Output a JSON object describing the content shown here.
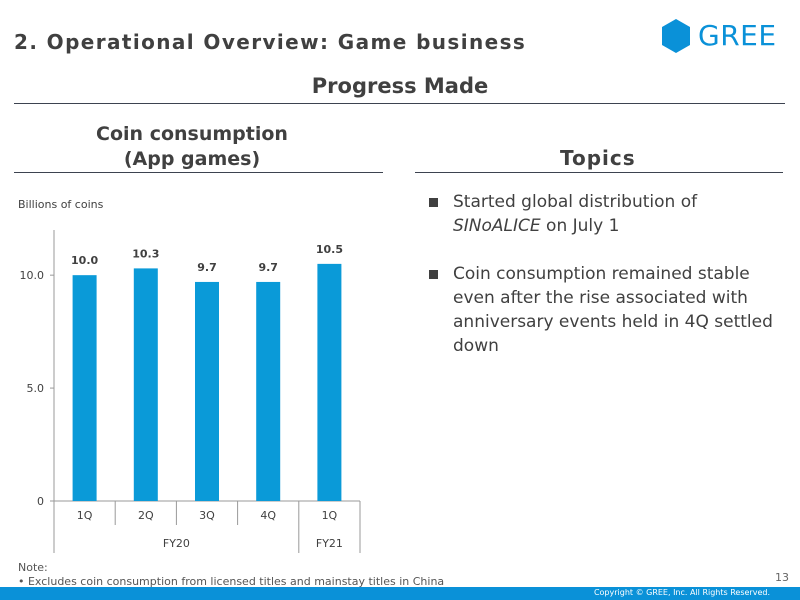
{
  "header": {
    "title": "2. Operational Overview: Game business",
    "logo_text": "GREE",
    "subtitle": "Progress Made"
  },
  "left_panel": {
    "heading_line1": "Coin consumption",
    "heading_line2": "(App games)",
    "unit_label": "Billions of coins"
  },
  "right_panel": {
    "heading": "Topics",
    "bullets": [
      {
        "before": "Started global distribution of ",
        "emphasis": "SINoALICE",
        "after": " on July 1"
      },
      {
        "before": "Coin consumption remained stable even after the rise associated with anniversary events held in 4Q settled down",
        "emphasis": "",
        "after": ""
      }
    ]
  },
  "chart_data": {
    "type": "bar",
    "title": "Coin consumption (App games)",
    "ylabel": "Billions of coins",
    "xlabel": "",
    "categories": [
      "1Q",
      "2Q",
      "3Q",
      "4Q",
      "1Q"
    ],
    "groups": [
      {
        "label": "FY20",
        "span": 4
      },
      {
        "label": "FY21",
        "span": 1
      }
    ],
    "values": [
      10.0,
      10.3,
      9.7,
      9.7,
      10.5
    ],
    "data_labels": [
      "10.0",
      "10.3",
      "9.7",
      "9.7",
      "10.5"
    ],
    "ylim": [
      0,
      12
    ],
    "yticks": [
      0,
      5.0,
      10.0
    ],
    "ytick_labels": [
      "0",
      "5.0",
      "10.0"
    ],
    "bar_color": "#0a9ad8",
    "grid": false
  },
  "footer": {
    "note_title": "Note:",
    "note_text": "• Excludes coin consumption from licensed titles and mainstay titles in China",
    "page_number": "13",
    "copyright": "Copyright © GREE, Inc. All Rights Reserved."
  },
  "colors": {
    "brand": "#0a91d8",
    "text": "#404040"
  }
}
